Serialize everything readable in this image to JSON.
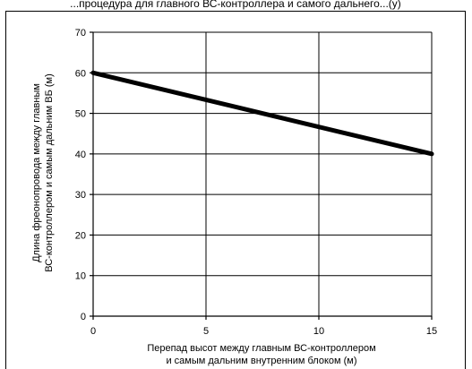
{
  "top_caption": "...процедура для главного ВС-контроллера и самого дальнего...(у)",
  "chart_data": {
    "type": "line",
    "title": "",
    "xlabel": [
      "Перепад высот между главным ВС-контроллером",
      "и самым дальним внутренним блоком (м)"
    ],
    "ylabel": [
      "Длина фреонопровода между главным",
      "ВС-контроллером и самым дальним ВБ (м)"
    ],
    "xlim": [
      0,
      15
    ],
    "ylim": [
      0,
      70
    ],
    "x_ticks": [
      0,
      5,
      10,
      15
    ],
    "y_ticks": [
      0,
      10,
      20,
      30,
      40,
      50,
      60,
      70
    ],
    "grid": true,
    "series": [
      {
        "x": [
          0,
          15
        ],
        "y": [
          60,
          40
        ],
        "color": "#000000"
      }
    ]
  }
}
